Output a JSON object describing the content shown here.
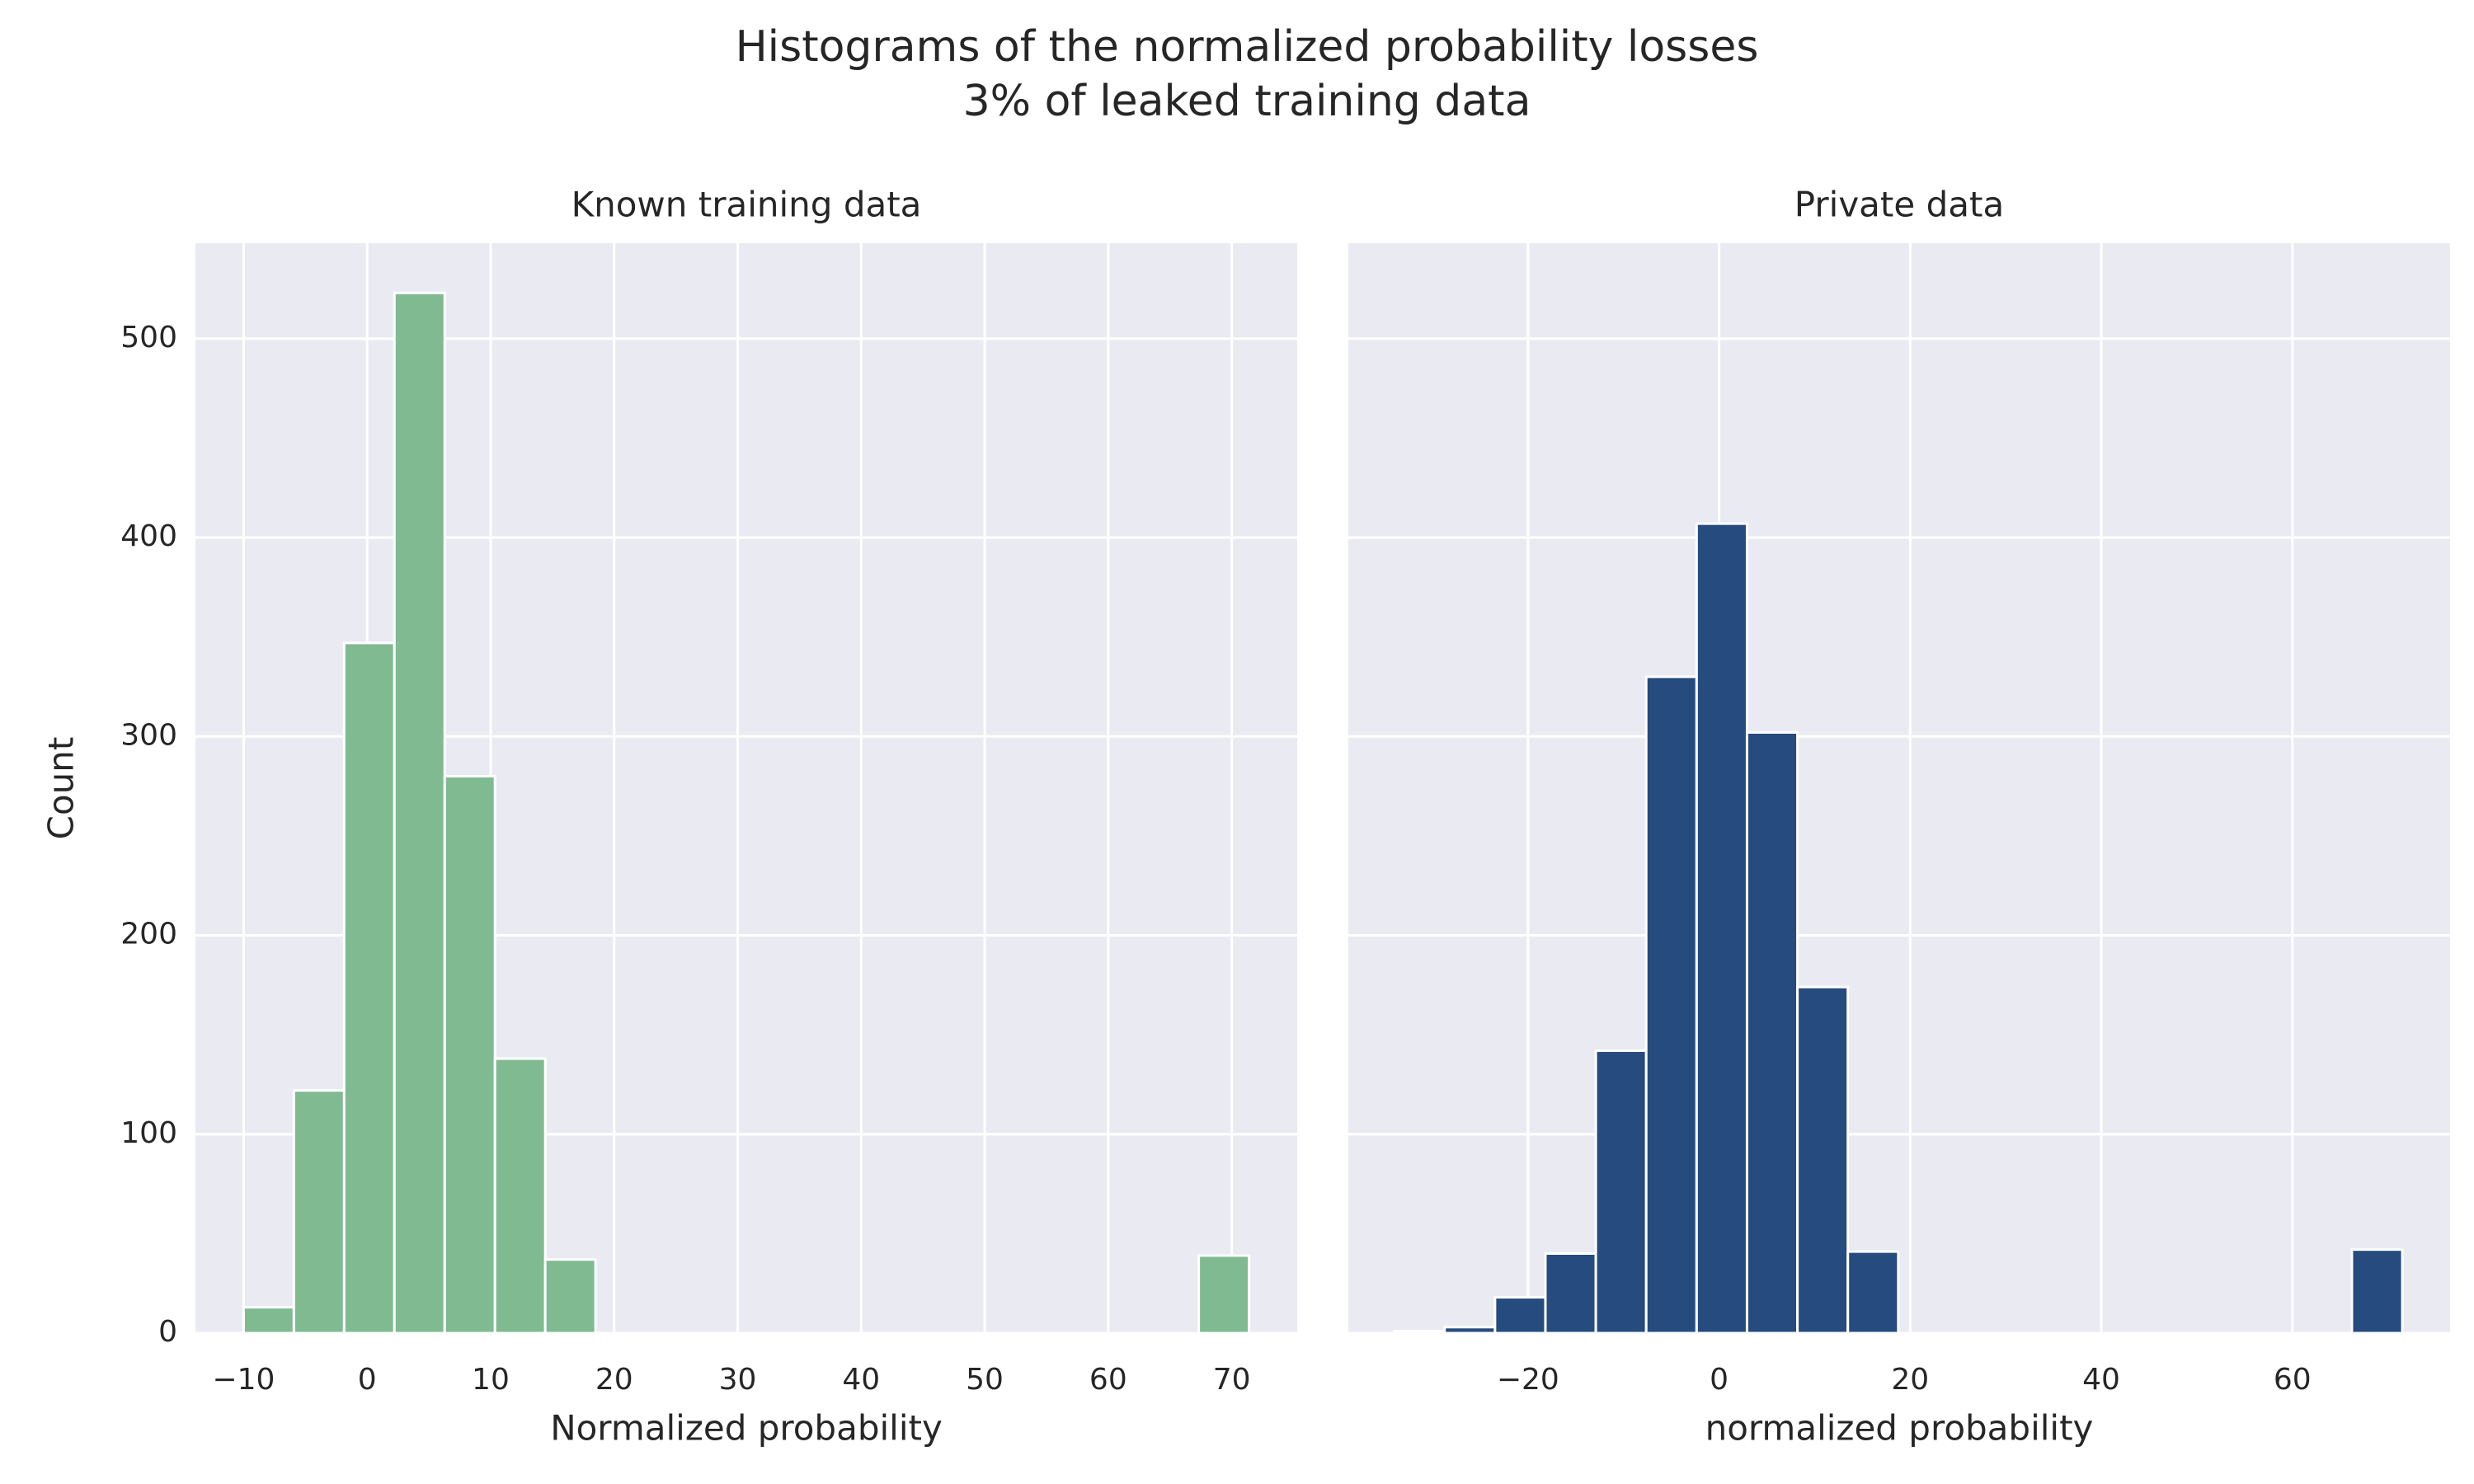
{
  "title": [
    "Histograms of the normalized probability losses",
    "3% of leaked training data"
  ],
  "chart_data": [
    {
      "type": "histogram",
      "title": "Known training data",
      "x_label": "Normalized probability",
      "y_label": "Count",
      "color": "#7fba91",
      "grid": true,
      "show_ytick_labels": true,
      "bins": [
        -10,
        -5.93,
        -1.86,
        2.21,
        6.28,
        10.35,
        14.42,
        18.49,
        22.56,
        26.63,
        30.7,
        34.77,
        38.84,
        42.91,
        46.98,
        51.05,
        55.12,
        59.19,
        63.26,
        67.33,
        71.4
      ],
      "values": [
        13,
        122,
        347,
        523,
        280,
        138,
        37,
        0,
        0,
        0,
        0,
        0,
        0,
        0,
        0,
        0,
        0,
        0,
        0,
        39
      ],
      "xlim": [
        -13.9,
        75.3
      ],
      "ylim": [
        0,
        548
      ],
      "xticks": [
        {
          "value": -10,
          "label": "−10"
        },
        0,
        10,
        20,
        30,
        40,
        50,
        60,
        70
      ],
      "yticks": [
        0,
        100,
        200,
        300,
        400,
        500
      ]
    },
    {
      "type": "histogram",
      "title": "Private data",
      "x_label": "normalized probability",
      "color": "#264b7f",
      "grid": true,
      "show_ytick_labels": false,
      "bins": [
        -34,
        -28.725,
        -23.45,
        -18.175,
        -12.9,
        -7.625,
        -2.35,
        2.925,
        8.2,
        13.475,
        18.75,
        24.025,
        29.3,
        34.575,
        39.85,
        45.125,
        50.4,
        55.675,
        60.95,
        66.225,
        71.5
      ],
      "values": [
        1,
        3,
        18,
        40,
        142,
        330,
        407,
        302,
        174,
        41,
        0,
        0,
        0,
        0,
        0,
        0,
        0,
        0,
        0,
        42
      ],
      "xlim": [
        -38.8,
        76.5
      ],
      "ylim": [
        0,
        548
      ],
      "xticks": [
        {
          "value": -20,
          "label": "−20"
        },
        0,
        20,
        40,
        60
      ],
      "yticks": [
        0,
        100,
        200,
        300,
        400,
        500
      ]
    }
  ]
}
